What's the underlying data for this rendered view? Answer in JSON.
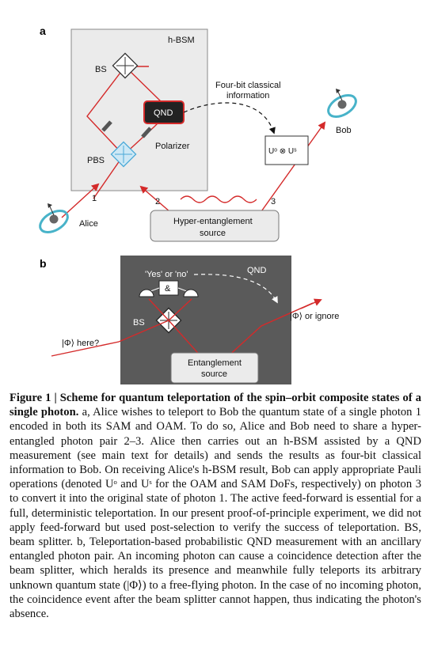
{
  "panel_a": {
    "letter": "a",
    "hbsm_label": "h-BSM",
    "bs_label": "BS",
    "qnd_label": "QND",
    "pbs_label": "PBS",
    "polarizer_label": "Polarizer",
    "info_line1": "Four-bit classical",
    "info_line2": "information",
    "bob_label": "Bob",
    "alice_label": "Alice",
    "photon_1": "1",
    "photon_2": "2",
    "photon_3": "3",
    "source_line1": "Hyper-entanglement",
    "source_line2": "source",
    "operator_label": "Uᵒ ⊗ Uˢ"
  },
  "panel_b": {
    "letter": "b",
    "yes_no_label": "'Yes' or 'no'",
    "qnd_label": "QND",
    "and_label": "&",
    "bs_label": "BS",
    "phi_here_label": "|Φ⟩ here?",
    "phi_ignore_label": "|Φ⟩ or ignore",
    "source_line1": "Entanglement",
    "source_line2": "source"
  },
  "caption": {
    "bold": "Figure 1 | Scheme for quantum teleportation of the spin–orbit composite states of a single photon.",
    "body": " a, Alice wishes to teleport to Bob the quantum state of a single photon 1 encoded in both its SAM and OAM. To do so, Alice and Bob need to share a hyper-entangled photon pair 2–3. Alice then carries out an h-BSM assisted by a QND measurement (see main text for details) and sends the results as four-bit classical information to Bob. On receiving Alice's h-BSM result, Bob can apply appropriate Pauli operations (denoted Uᵒ and Uˢ for the OAM and SAM DoFs, respectively) on photon 3 to convert it into the original state of photon 1. The active feed-forward is essential for a full, deterministic teleportation. In our present proof-of-principle experiment, we did not apply feed-forward but used post-selection to verify the success of teleportation. BS, beam splitter. b, Teleportation-based probabilistic QND measurement with an ancillary entangled photon pair. An incoming photon can cause a coincidence detection after the beam splitter, which heralds its presence and meanwhile fully teleports its arbitrary unknown quantum state (|Φ⟩) to a free-flying photon. In the case of no incoming photon, the coincidence event after the beam splitter cannot happen, thus indicating the photon's absence."
  },
  "colors": {
    "beam": "#d42a2a",
    "panel_a_box": "#ebebeb",
    "panel_b_box": "#5a5a5a",
    "qnd_box": "#222222",
    "pbs_blue": "#4aa9d8",
    "planet_teal": "#48b3c9"
  }
}
